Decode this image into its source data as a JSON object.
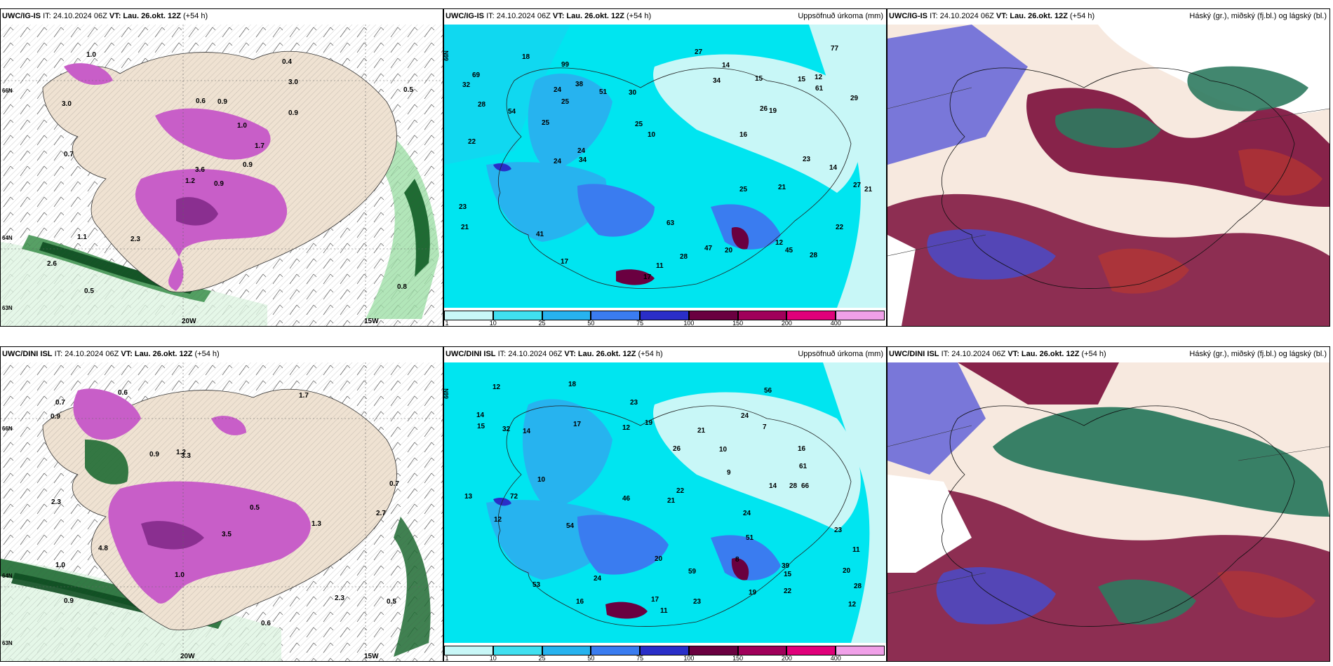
{
  "rows": [
    {
      "model": "UWC/IG-IS",
      "panels": [
        {
          "type": "wind",
          "title_model": "UWC/IG-IS",
          "it": "IT: 24.10.2024 06Z",
          "vt_label": "VT:",
          "vt": "Lau. 26.okt. 12Z",
          "lead": "(+54 h)",
          "right": ""
        },
        {
          "type": "precip",
          "title_model": "UWC/IG-IS",
          "it": "IT: 24.10.2024 06Z",
          "vt_label": "VT:",
          "vt": "Lau. 26.okt. 12Z",
          "lead": "(+54 h)",
          "right": "Uppsöfnuð úrkoma (mm)"
        },
        {
          "type": "cloud",
          "title_model": "UWC/IG-IS",
          "it": "IT: 24.10.2024 06Z",
          "vt_label": "VT:",
          "vt": "Lau. 26.okt. 12Z",
          "lead": "(+54 h)",
          "right": "Háský (gr.), miðský (fj.bl.) og lágský (bl.)"
        }
      ]
    },
    {
      "model": "UWC/DINI ISL",
      "panels": [
        {
          "type": "wind",
          "title_model": "UWC/DINI ISL",
          "it": "IT: 24.10.2024 06Z",
          "vt_label": "VT:",
          "vt": "Lau. 26.okt. 12Z",
          "lead": "(+54 h)",
          "right": ""
        },
        {
          "type": "precip",
          "title_model": "UWC/DINI ISL",
          "it": "IT: 24.10.2024 06Z",
          "vt_label": "VT:",
          "vt": "Lau. 26.okt. 12Z",
          "lead": "(+54 h)",
          "right": "Uppsöfnuð úrkoma (mm)"
        },
        {
          "type": "cloud",
          "title_model": "UWC/DINI ISL",
          "it": "IT: 24.10.2024 06Z",
          "vt_label": "VT:",
          "vt": "Lau. 26.okt. 12Z",
          "lead": "(+54 h)",
          "right": "Háský (gr.), miðský (fj.bl.) og lágský (bl.)"
        }
      ]
    }
  ],
  "wind_map": {
    "lon_labels": [
      "20W",
      "15W"
    ],
    "lat_labels": [
      "66N",
      "64N",
      "63N"
    ],
    "top_values": [
      "0.9",
      "3.0",
      "3.6",
      "2.6",
      "1.7",
      "2.3",
      "0.4",
      "0.9",
      "3.0",
      "0.9",
      "1.0",
      "0.8",
      "0.7",
      "0.5",
      "1.2",
      "0.9",
      "0.5",
      "0.6",
      "1.0",
      "1.1"
    ],
    "bottom_values": [
      "1.3",
      "2.7",
      "0.9",
      "0.6",
      "3.3",
      "2.3",
      "1.0",
      "1.7",
      "0.9",
      "0.6",
      "0.9",
      "2.3",
      "0.7",
      "0.5",
      "1.0",
      "0.7",
      "3.5",
      "0.5",
      "1.2",
      "4.8"
    ]
  },
  "precip_map": {
    "lat_label": "66N",
    "colorbar_ticks": [
      "1",
      "10",
      "25",
      "50",
      "75",
      "100",
      "150",
      "200",
      "400"
    ],
    "colorbar_colors": [
      "#c8f7f7",
      "#40e0f0",
      "#27b3ef",
      "#3a7cf0",
      "#2a2ec8",
      "#6a0040",
      "#a0005a",
      "#e0007a",
      "#f0a0e8"
    ],
    "top_values": [
      "28",
      "25",
      "16",
      "11",
      "15",
      "17",
      "25",
      "34",
      "12",
      "21",
      "27",
      "38",
      "26",
      "41",
      "22",
      "17",
      "24",
      "30",
      "28",
      "47",
      "45",
      "14",
      "10",
      "63",
      "15",
      "25",
      "61",
      "14",
      "18",
      "24",
      "23",
      "20",
      "77",
      "54",
      "69",
      "99",
      "51",
      "34",
      "27",
      "21",
      "19",
      "24",
      "25",
      "12",
      "28",
      "29",
      "32",
      "23",
      "22",
      "21"
    ],
    "bottom_values": [
      "26",
      "15",
      "14",
      "16",
      "17",
      "19",
      "23",
      "24",
      "10",
      "12",
      "39",
      "21",
      "24",
      "32",
      "28",
      "7",
      "11",
      "8",
      "59",
      "51",
      "15",
      "20",
      "9",
      "46",
      "61",
      "14",
      "12",
      "12",
      "22",
      "23",
      "53",
      "72",
      "56",
      "66",
      "54",
      "12",
      "18",
      "17",
      "19",
      "22",
      "21",
      "13",
      "14",
      "16",
      "10",
      "11",
      "20",
      "23",
      "24",
      "28"
    ]
  }
}
